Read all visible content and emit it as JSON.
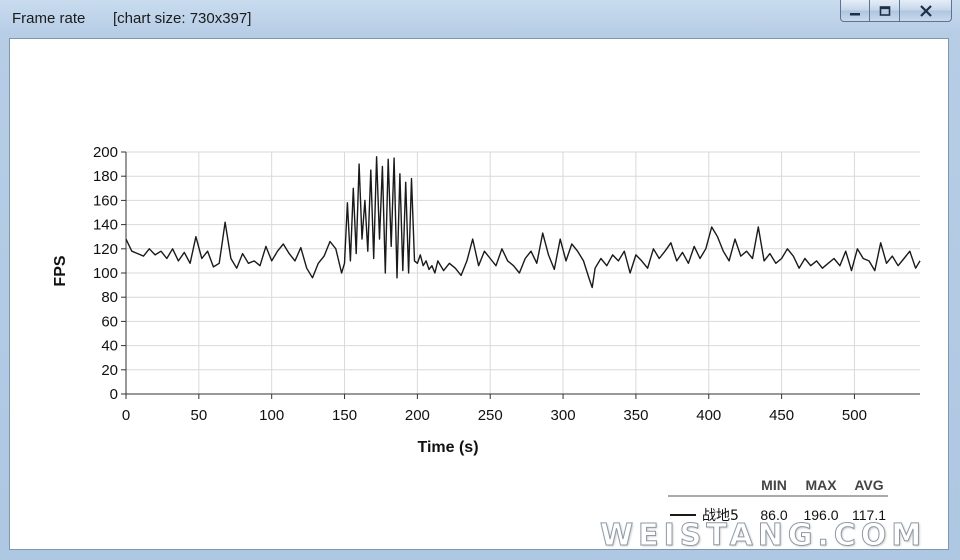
{
  "window": {
    "title": "Frame rate",
    "subtitle": "[chart size: 730x397]",
    "min_icon": "minimize-icon",
    "max_icon": "maximize-icon",
    "close_icon": "close-icon"
  },
  "watermark": "WEISTANG.COM",
  "chart_data": {
    "type": "line",
    "title": "",
    "xlabel": "Time (s)",
    "ylabel": "FPS",
    "xlim": [
      0,
      545
    ],
    "ylim": [
      0,
      200
    ],
    "x_ticks": [
      0,
      50,
      100,
      150,
      200,
      250,
      300,
      350,
      400,
      450,
      500
    ],
    "y_ticks": [
      0,
      20,
      40,
      60,
      80,
      100,
      120,
      140,
      160,
      180,
      200
    ],
    "grid": true,
    "series": [
      {
        "name": "战地5",
        "color": "#1a1a1a",
        "x": [
          0,
          4,
          8,
          12,
          16,
          20,
          24,
          28,
          32,
          36,
          40,
          44,
          48,
          52,
          56,
          60,
          64,
          66,
          68,
          72,
          76,
          80,
          84,
          88,
          92,
          96,
          100,
          104,
          108,
          112,
          116,
          120,
          124,
          128,
          132,
          136,
          140,
          144,
          148,
          150,
          152,
          154,
          156,
          158,
          160,
          162,
          164,
          166,
          168,
          170,
          172,
          174,
          176,
          178,
          180,
          182,
          184,
          186,
          188,
          190,
          192,
          194,
          196,
          198,
          200,
          202,
          204,
          206,
          208,
          210,
          212,
          214,
          218,
          222,
          226,
          230,
          234,
          238,
          242,
          246,
          250,
          254,
          258,
          262,
          266,
          270,
          274,
          278,
          282,
          286,
          290,
          294,
          298,
          302,
          306,
          310,
          314,
          318,
          320,
          322,
          326,
          330,
          334,
          338,
          342,
          346,
          350,
          354,
          358,
          362,
          366,
          370,
          374,
          378,
          382,
          386,
          390,
          394,
          398,
          402,
          406,
          410,
          414,
          418,
          422,
          426,
          430,
          434,
          438,
          442,
          446,
          450,
          454,
          458,
          462,
          466,
          470,
          474,
          478,
          482,
          486,
          490,
          494,
          498,
          502,
          506,
          510,
          514,
          518,
          522,
          526,
          530,
          534,
          538,
          542,
          545
        ],
        "y": [
          128,
          118,
          116,
          114,
          120,
          115,
          118,
          112,
          120,
          110,
          117,
          108,
          130,
          112,
          118,
          105,
          108,
          125,
          142,
          112,
          104,
          116,
          108,
          110,
          106,
          122,
          110,
          118,
          124,
          116,
          110,
          121,
          104,
          96,
          108,
          114,
          126,
          120,
          100,
          108,
          158,
          110,
          170,
          116,
          190,
          128,
          160,
          118,
          185,
          112,
          196,
          128,
          188,
          100,
          194,
          122,
          195,
          96,
          182,
          102,
          175,
          100,
          178,
          110,
          108,
          115,
          106,
          110,
          103,
          106,
          100,
          110,
          102,
          108,
          104,
          98,
          110,
          128,
          106,
          118,
          112,
          106,
          120,
          110,
          106,
          100,
          112,
          118,
          108,
          133,
          115,
          103,
          128,
          110,
          124,
          118,
          110,
          95,
          88,
          104,
          112,
          106,
          115,
          110,
          118,
          100,
          115,
          110,
          104,
          120,
          112,
          118,
          125,
          110,
          117,
          108,
          122,
          112,
          120,
          138,
          130,
          118,
          110,
          128,
          114,
          118,
          112,
          138,
          110,
          116,
          108,
          112,
          120,
          114,
          104,
          112,
          106,
          110,
          104,
          108,
          112,
          106,
          118,
          102,
          120,
          112,
          110,
          102,
          125,
          108,
          114,
          106,
          112,
          118,
          104,
          110
        ]
      }
    ],
    "legend": {
      "placement": "bottom-right",
      "headers": [
        "MIN",
        "MAX",
        "AVG"
      ],
      "rows": [
        {
          "name": "战地5",
          "min": "86.0",
          "max": "196.0",
          "avg": "117.1"
        }
      ]
    }
  }
}
